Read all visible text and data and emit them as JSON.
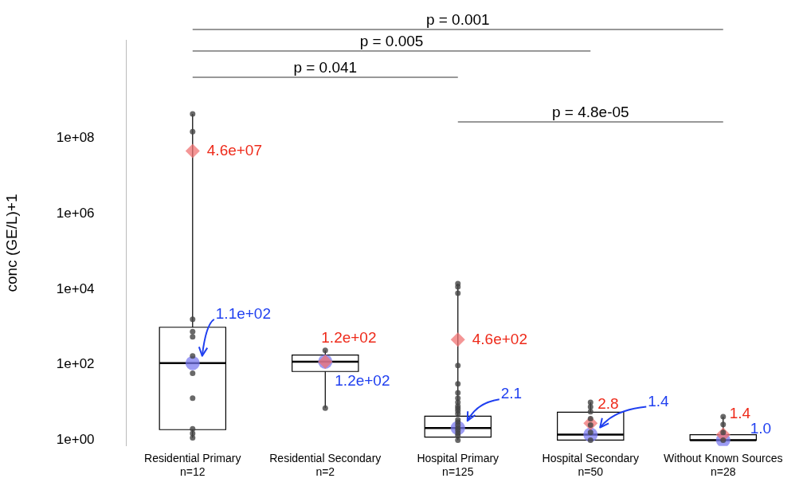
{
  "chart_data": {
    "type": "box",
    "ylabel": "conc (GE/L)+1",
    "categories": [
      "Residential Primary\nn=12",
      "Residential Secondary\nn=2",
      "Hospital Primary\nn=125",
      "Hospital Secondary\nn=50",
      "Without Known Sources\nn=28"
    ],
    "log": "y",
    "ylim": [
      0.7,
      40000000000
    ],
    "yticks": [
      {
        "value": 1,
        "label": "1e+00"
      },
      {
        "value": 100,
        "label": "1e+02"
      },
      {
        "value": 10000,
        "label": "1e+04"
      },
      {
        "value": 1000000,
        "label": "1e+06"
      },
      {
        "value": 100000000,
        "label": "1e+08"
      }
    ],
    "grid": false,
    "legend": false,
    "series": [
      {
        "type": "box",
        "color": "#000000",
        "boxes": [
          {
            "low": 1.15,
            "q1": 1.9,
            "median": 110,
            "q3": 980,
            "high": 440000000
          },
          {
            "low": 7.1,
            "q1": 66,
            "median": 120,
            "q3": 180,
            "high": 240
          },
          {
            "low": 1.0,
            "q1": 1.2,
            "median": 2.1,
            "q3": 4.3,
            "high": 14000
          },
          {
            "low": 1.0,
            "q1": 1.0,
            "median": 1.4,
            "q3": 5.5,
            "high": 10
          },
          {
            "low": 1.0,
            "q1": 1.0,
            "median": 1.0,
            "q3": 1.4,
            "high": 4.2
          }
        ]
      },
      {
        "type": "scatter",
        "marker": "circle",
        "color": "#444444",
        "x": [
          "Residential Primary\nn=12",
          "Residential Primary\nn=12",
          "Residential Primary\nn=12",
          "Residential Primary\nn=12",
          "Residential Primary\nn=12",
          "Residential Primary\nn=12",
          "Residential Primary\nn=12",
          "Residential Primary\nn=12",
          "Residential Primary\nn=12",
          "Residential Primary\nn=12",
          "Residential Primary\nn=12",
          "Residential Primary\nn=12",
          "Residential Secondary\nn=2",
          "Residential Secondary\nn=2",
          "Hospital Primary\nn=125",
          "Hospital Primary\nn=125",
          "Hospital Primary\nn=125",
          "Hospital Primary\nn=125",
          "Hospital Primary\nn=125",
          "Hospital Primary\nn=125",
          "Hospital Primary\nn=125",
          "Hospital Primary\nn=125",
          "Hospital Primary\nn=125",
          "Hospital Primary\nn=125",
          "Hospital Primary\nn=125",
          "Hospital Primary\nn=125",
          "Hospital Primary\nn=125",
          "Hospital Primary\nn=125",
          "Hospital Primary\nn=125",
          "Hospital Primary\nn=125",
          "Hospital Primary\nn=125",
          "Hospital Primary\nn=125",
          "Hospital Primary\nn=125",
          "Hospital Primary\nn=125",
          "Hospital Primary\nn=125",
          "Hospital Secondary\nn=50",
          "Hospital Secondary\nn=50",
          "Hospital Secondary\nn=50",
          "Hospital Secondary\nn=50",
          "Hospital Secondary\nn=50",
          "Hospital Secondary\nn=50",
          "Hospital Secondary\nn=50",
          "Without Known Sources\nn=28",
          "Without Known Sources\nn=28",
          "Without Known Sources\nn=28",
          "Without Known Sources\nn=28"
        ],
        "values": [
          440000000,
          150000000,
          1600,
          750,
          550,
          170,
          59,
          13,
          2,
          1.5,
          null,
          1.15,
          240,
          7.1,
          14000,
          11500,
          7800,
          95,
          31,
          18,
          13,
          10,
          8,
          7,
          6,
          5,
          null,
          3.5,
          3,
          2.5,
          2.1,
          1.8,
          1.5,
          1.3,
          1.0,
          10,
          7.6,
          5.7,
          3.7,
          2.5,
          1.6,
          1.0,
          4.2,
          2.6,
          1.6,
          1.0
        ]
      },
      {
        "type": "scatter",
        "marker": "diamond",
        "color": "#f07070",
        "x": [
          "Residential Primary\nn=12",
          "Residential Secondary\nn=2",
          "Hospital Primary\nn=125",
          "Hospital Secondary\nn=50",
          "Without Known Sources\nn=28"
        ],
        "values": [
          46000000,
          120,
          460,
          2.8,
          1.4
        ],
        "value_labels": [
          "4.6e+07",
          "1.2e+02",
          "4.6e+02",
          "2.8",
          "1.4"
        ]
      },
      {
        "type": "scatter",
        "marker": "circle",
        "color": "#7878f0",
        "x": [
          "Residential Primary\nn=12",
          "Residential Secondary\nn=2",
          "Hospital Primary\nn=125",
          "Hospital Secondary\nn=50",
          "Without Known Sources\nn=28"
        ],
        "values": [
          110,
          120,
          2.1,
          1.4,
          1.0
        ],
        "value_labels": [
          "1.1e+02",
          "1.2e+02",
          "2.1",
          "1.4",
          "1.0"
        ]
      }
    ],
    "annotations": [
      "p = 0.001",
      "p = 0.005",
      "p = 0.041",
      "p = 4.8e-05"
    ]
  }
}
